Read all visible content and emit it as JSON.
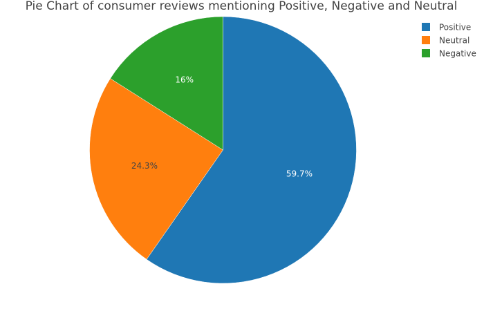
{
  "chart_data": {
    "type": "pie",
    "title": "Pie Chart of consumer reviews mentioning Positive, Negative and Neutral",
    "slices": [
      {
        "label": "Positive",
        "value": 59.7,
        "display": "59.7%",
        "color": "#1f77b4",
        "label_color": "#ffffff"
      },
      {
        "label": "Neutral",
        "value": 24.3,
        "display": "24.3%",
        "color": "#ff7f0e",
        "label_color": "#444444"
      },
      {
        "label": "Negative",
        "value": 16,
        "display": "16%",
        "color": "#2ca02c",
        "label_color": "#ffffff"
      }
    ],
    "legend": {
      "position": "top-right",
      "entries": [
        "Positive",
        "Neutral",
        "Negative"
      ]
    }
  }
}
